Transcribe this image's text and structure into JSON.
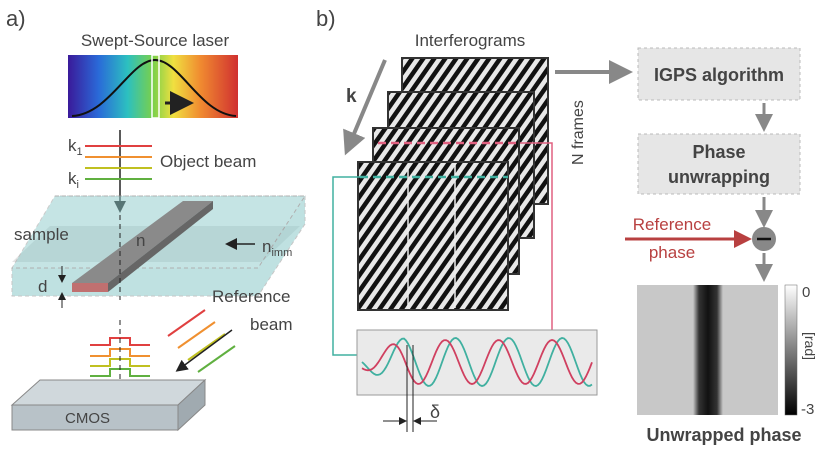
{
  "panel_a": {
    "label": "a)",
    "laser_title": "Swept-Source laser",
    "k_first": {
      "base": "k",
      "sub": "1"
    },
    "k_i": {
      "base": "k",
      "sub": "i"
    },
    "object_beam": "Object beam",
    "sample": "sample",
    "n": "n",
    "n_imm": {
      "base": "n",
      "sub": "imm"
    },
    "d": "d",
    "reference_beam": [
      "Reference",
      "beam"
    ],
    "cmos": "CMOS"
  },
  "panel_b": {
    "label": "b)",
    "interferograms": "Interferograms",
    "k": "k",
    "n_frames": "N frames",
    "igps": "IGPS algorithm",
    "phase_unwrapping": [
      "Phase",
      "unwrapping"
    ],
    "reference_phase": [
      "Reference",
      "phase"
    ],
    "delta": "δ",
    "colorbar": {
      "max_label": "0",
      "unit": "[rad]",
      "min_label": "-3"
    },
    "result_title": "Unwrapped phase"
  }
}
